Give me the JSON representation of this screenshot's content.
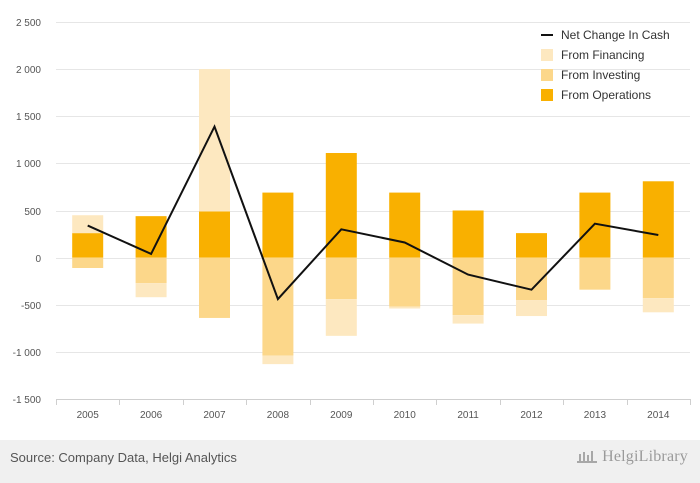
{
  "chart_data": {
    "type": "bar",
    "categories": [
      "2005",
      "2006",
      "2007",
      "2008",
      "2009",
      "2010",
      "2011",
      "2012",
      "2013",
      "2014"
    ],
    "series": [
      {
        "name": "From Operations",
        "kind": "stacked-bar",
        "values": [
          260,
          440,
          490,
          690,
          1110,
          690,
          500,
          260,
          690,
          810
        ]
      },
      {
        "name": "From Investing",
        "kind": "stacked-bar",
        "values": [
          -110,
          -270,
          -640,
          -1040,
          -440,
          -520,
          -610,
          -450,
          -340,
          -430
        ]
      },
      {
        "name": "From Financing",
        "kind": "stacked-bar",
        "values": [
          190,
          -150,
          1510,
          -90,
          -390,
          -20,
          -90,
          -170,
          0,
          -150
        ]
      },
      {
        "name": "Net Change In Cash",
        "kind": "line",
        "values": [
          340,
          40,
          1390,
          -440,
          300,
          160,
          -180,
          -340,
          360,
          240
        ]
      }
    ],
    "yticks": [
      "2 500",
      "2 000",
      "1 500",
      "1 000",
      "500",
      "0",
      "-500",
      "-1 000",
      "-1 500"
    ],
    "ylim": [
      -1500,
      2500
    ],
    "legend": [
      "Net Change In Cash",
      "From Financing",
      "From Investing",
      "From Operations"
    ],
    "legend_position": "top-right",
    "grid": true,
    "colors": {
      "From Operations": "#f9b000",
      "From Investing": "#fcd78a",
      "From Financing": "#fde8c0",
      "Net Change In Cash": "#111111",
      "grid": "#e6e6e6"
    }
  },
  "footer": {
    "source": "Source: Company Data, Helgi Analytics",
    "brand": "HelgiLibrary"
  }
}
